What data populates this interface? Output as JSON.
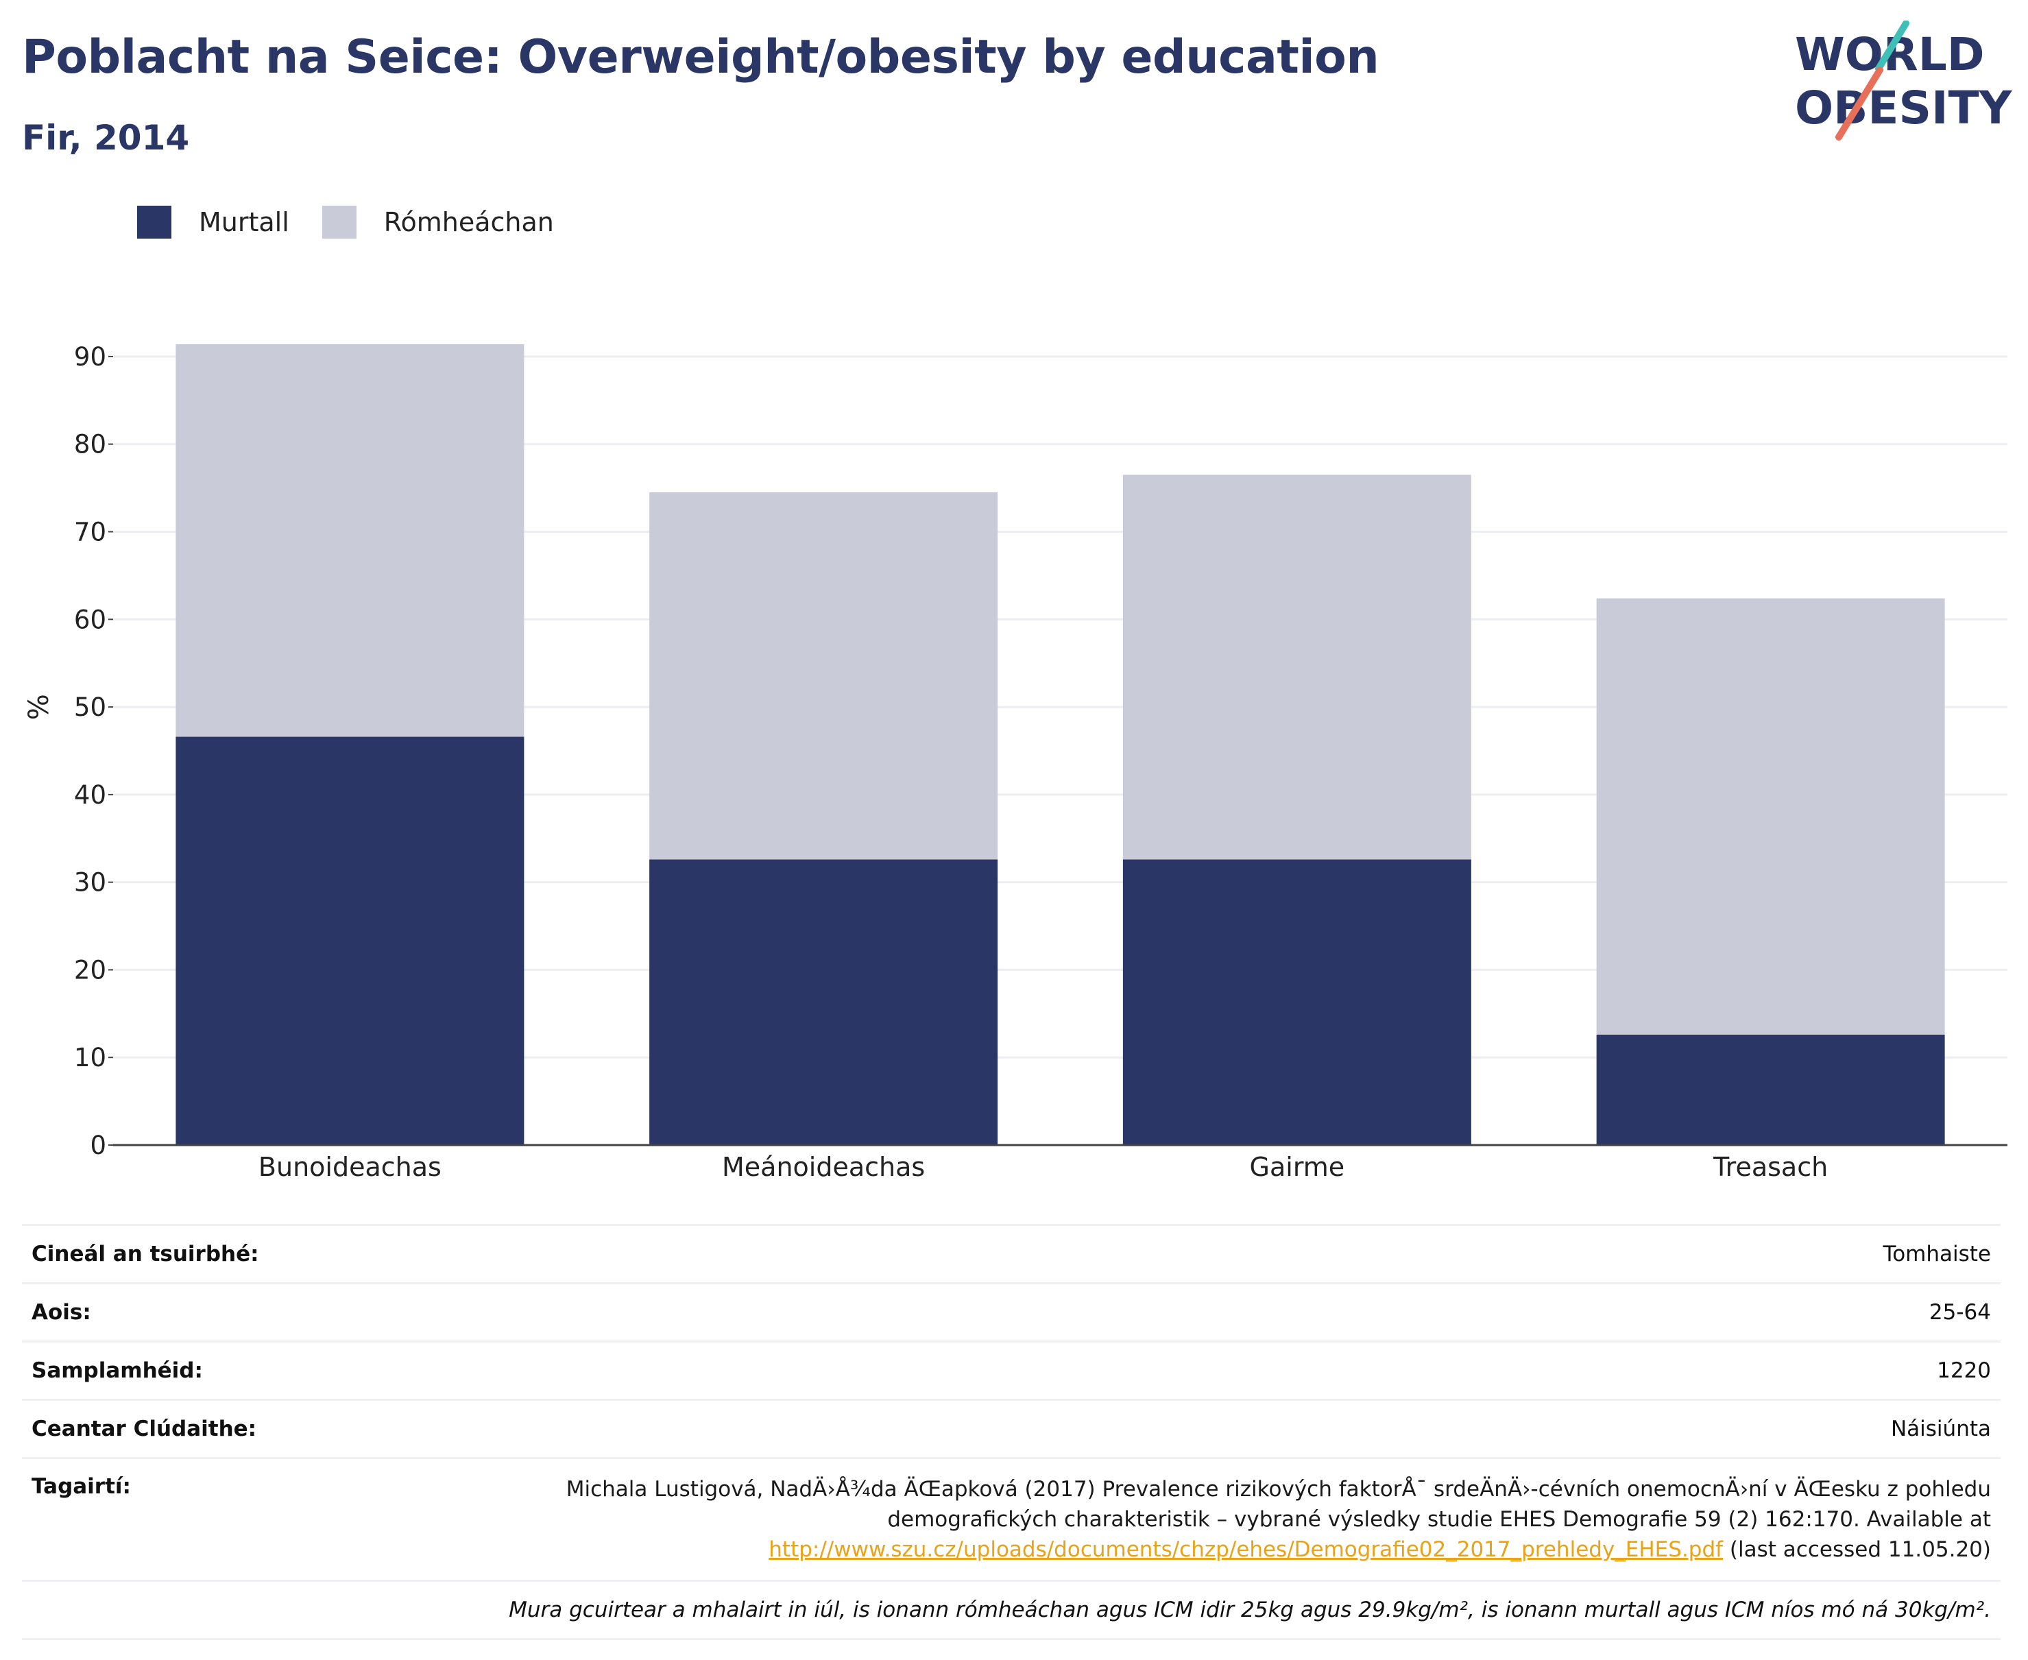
{
  "header": {
    "title": "Poblacht na Seice: Overweight/obesity by education",
    "subtitle": "Fir, 2014"
  },
  "logo": {
    "line1": "WORLD",
    "line2": "OBESITY",
    "accent_colors": [
      "#3fbfb5",
      "#e8705a"
    ],
    "text_color": "#2a3665"
  },
  "legend": [
    {
      "label": "Murtall",
      "color": "#2a3665"
    },
    {
      "label": "Rómheáchan",
      "color": "#c9ccd8"
    }
  ],
  "chart_data": {
    "type": "bar",
    "stacked": true,
    "categories": [
      "Bunoideachas",
      "Meánoideachas",
      "Gairme",
      "Treasach"
    ],
    "series": [
      {
        "name": "Murtall",
        "values": [
          46.6,
          32.6,
          32.6,
          12.6
        ],
        "color": "#2a3665"
      },
      {
        "name": "Rómheáchan",
        "values": [
          44.8,
          41.9,
          43.9,
          49.8
        ],
        "color": "#c9ccd8"
      }
    ],
    "ylabel": "%",
    "yticks": [
      0,
      10,
      20,
      30,
      40,
      50,
      60,
      70,
      80,
      90
    ],
    "ylim": [
      0,
      95
    ],
    "grid": true,
    "legend_position": "top-left"
  },
  "info": {
    "rows": [
      {
        "label": "Cineál an tsuirbhé:",
        "value": "Tomhaiste"
      },
      {
        "label": "Aois:",
        "value": "25-64"
      },
      {
        "label": "Samplamhéid:",
        "value": "1220"
      },
      {
        "label": "Ceantar Clúdaithe:",
        "value": "Náisiúnta"
      }
    ],
    "reference": {
      "label": "Tagairtí:",
      "line1": "Michala Lustigová, NadÄ›Å¾da ÄŒapková (2017) Prevalence rizikových faktorÅ¯ srdeÄnÄ›-cévních onemocnÄ›ní v ÄŒesku z pohledu",
      "line2": "demografických charakteristik – vybrané výsledky studie EHES Demografie 59 (2) 162:170. Available at",
      "link": "http://www.szu.cz/uploads/documents/chzp/ehes/Demografie02_2017_prehledy_EHES.pdf",
      "suffix": " (last accessed 11.05.20)"
    },
    "note": "Mura gcuirtear a mhalairt in iúl, is ionann rómheáchan agus ICM idir 25kg agus 29.9kg/m², is ionann murtall agus ICM níos mó ná 30kg/m²."
  }
}
